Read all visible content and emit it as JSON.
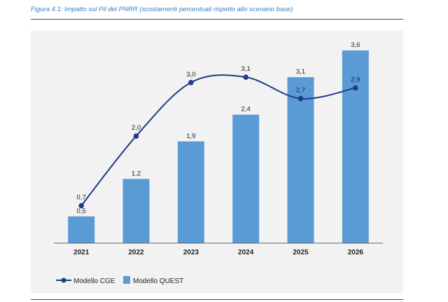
{
  "caption": "Figura 4.1: Impatto sul Pil del PNRR (scostamenti percentuali rispetto allo scenario base)",
  "colors": {
    "bar": "#5b9bd5",
    "line": "#1f3c88",
    "caption": "#3a7fbf",
    "panel": "#f2f2f2"
  },
  "chart_data": {
    "type": "bar",
    "categories": [
      "2021",
      "2022",
      "2023",
      "2024",
      "2025",
      "2026"
    ],
    "series": [
      {
        "name": "Modello QUEST",
        "type": "bar",
        "values": [
          0.5,
          1.2,
          1.9,
          2.4,
          3.1,
          3.6
        ],
        "labels": [
          "0,5",
          "1,2",
          "1,9",
          "2,4",
          "3,1",
          "3,6"
        ]
      },
      {
        "name": "Modello CGE",
        "type": "line",
        "values": [
          0.7,
          2.0,
          3.0,
          3.1,
          2.7,
          2.9
        ],
        "labels": [
          "0,7",
          "2,0",
          "3,0",
          "3,1",
          "2,7",
          "2,9"
        ]
      }
    ],
    "ylim": [
      0,
      3.9
    ],
    "grid": false,
    "legend": "bottom-left"
  }
}
